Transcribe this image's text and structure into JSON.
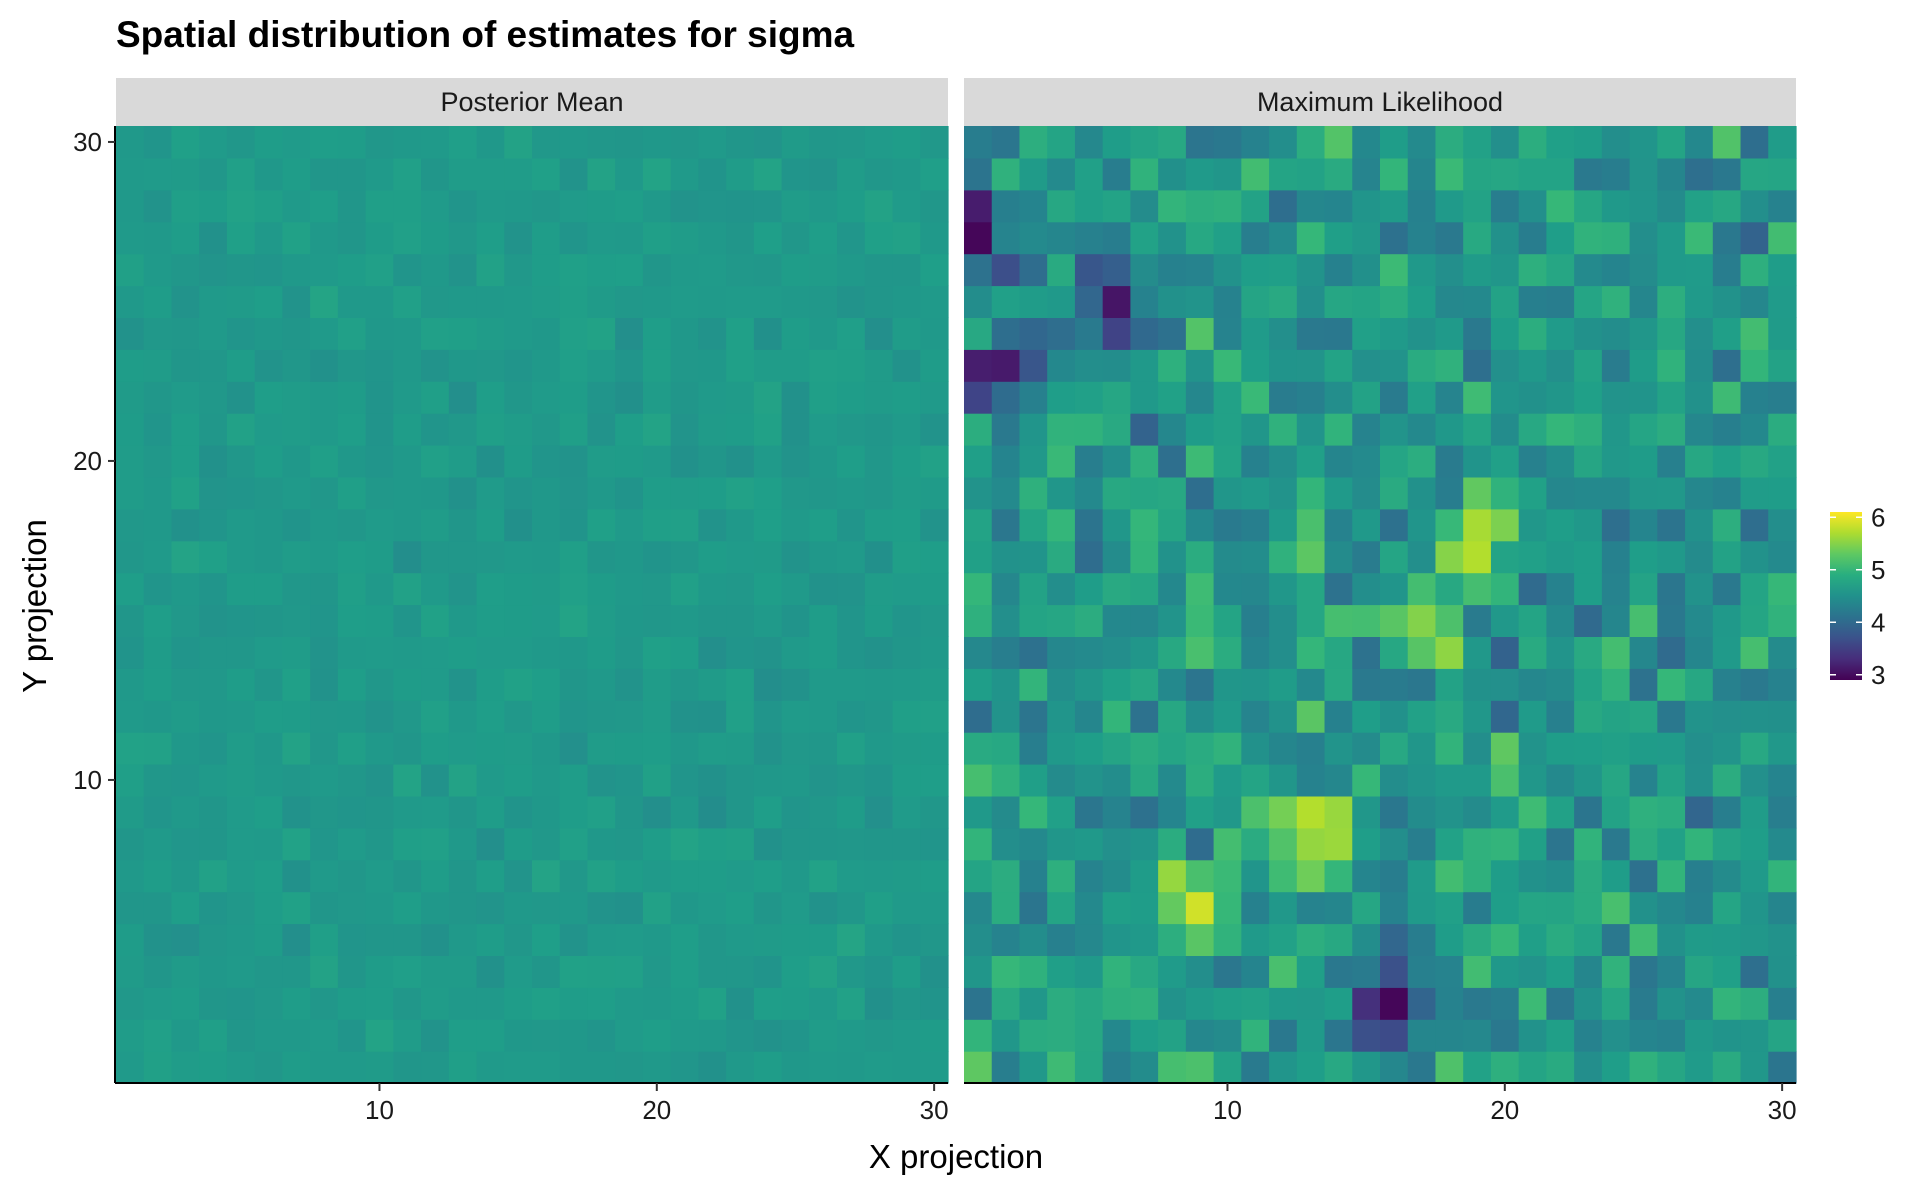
{
  "chart_data": {
    "type": "heatmap",
    "title": "Spatial distribution of estimates for sigma",
    "xlabel": "X projection",
    "ylabel": "Y projection",
    "xlim": [
      0.5,
      30.5
    ],
    "ylim": [
      0.5,
      30.5
    ],
    "x_ticks": [
      10,
      20,
      30
    ],
    "y_ticks": [
      10,
      20,
      30
    ],
    "grid_size": [
      30,
      30
    ],
    "legend": {
      "position": "right",
      "range": [
        2.9,
        6.1
      ],
      "ticks": [
        3,
        4,
        5,
        6
      ],
      "palette": "viridis"
    },
    "panels": [
      {
        "name": "Posterior Mean",
        "value_range": [
          4.35,
          4.95
        ],
        "center": 4.62,
        "values_note": "near-uniform field, values approx 4.4-4.9"
      },
      {
        "name": "Maximum Likelihood",
        "value_range": [
          2.95,
          6.05
        ],
        "center": 4.6,
        "features": [
          {
            "x": 9,
            "y": 6,
            "value": 6.0
          },
          {
            "x": 13,
            "y": 8,
            "value": 6.0
          },
          {
            "x": 19,
            "y": 18,
            "value": 5.8
          },
          {
            "x": 17,
            "y": 15,
            "value": 5.8
          },
          {
            "x": 16,
            "y": 3,
            "value": 2.95
          },
          {
            "x": 1,
            "y": 27,
            "value": 3.0
          },
          {
            "x": 2,
            "y": 23,
            "value": 3.0
          },
          {
            "x": 6,
            "y": 25,
            "value": 3.0
          }
        ]
      }
    ]
  }
}
